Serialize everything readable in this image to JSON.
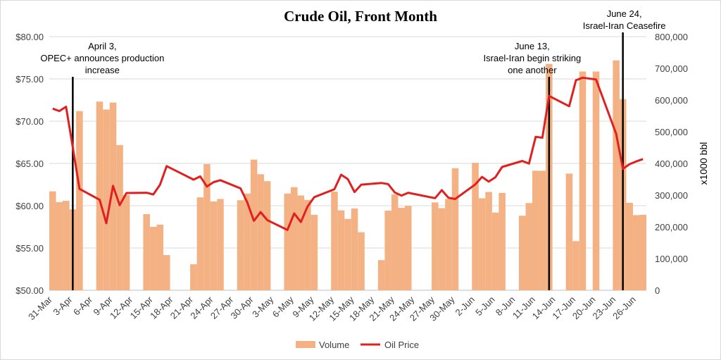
{
  "chart_data": {
    "type": "bar+line",
    "title": "Crude Oil, Front Month",
    "xlabel": "",
    "ylabel_left": "",
    "ylabel_right": "x1000 bbl",
    "ylim_left": [
      50,
      80
    ],
    "ylim_right": [
      0,
      800000
    ],
    "x_tick_labels": [
      "31-Mar",
      "3-Apr",
      "6-Apr",
      "9-Apr",
      "12-Apr",
      "15-Apr",
      "18-Apr",
      "21-Apr",
      "24-Apr",
      "27-Apr",
      "30-Apr",
      "3-May",
      "6-May",
      "9-May",
      "12-May",
      "15-May",
      "18-May",
      "21-May",
      "24-May",
      "27-May",
      "30-May",
      "2-Jun",
      "5-Jun",
      "8-Jun",
      "11-Jun",
      "14-Jun",
      "17-Jun",
      "20-Jun",
      "23-Jun",
      "26-Jun"
    ],
    "left_tick_labels": [
      "$50.00",
      "$55.00",
      "$60.00",
      "$65.00",
      "$70.00",
      "$75.00",
      "$80.00"
    ],
    "right_tick_labels": [
      "0",
      "100,000",
      "200,000",
      "300,000",
      "400,000",
      "500,000",
      "600,000",
      "700,000",
      "800,000"
    ],
    "series": [
      {
        "name": "Volume",
        "kind": "bar",
        "axis": "right",
        "color": "#f4b183",
        "x": [
          "31-Mar",
          "1-Apr",
          "2-Apr",
          "3-Apr",
          "4-Apr",
          "7-Apr",
          "8-Apr",
          "9-Apr",
          "10-Apr",
          "11-Apr",
          "14-Apr",
          "15-Apr",
          "16-Apr",
          "17-Apr",
          "21-Apr",
          "22-Apr",
          "23-Apr",
          "24-Apr",
          "25-Apr",
          "28-Apr",
          "29-Apr",
          "30-Apr",
          "1-May",
          "2-May",
          "5-May",
          "6-May",
          "7-May",
          "8-May",
          "9-May",
          "12-May",
          "13-May",
          "14-May",
          "15-May",
          "16-May",
          "19-May",
          "20-May",
          "21-May",
          "22-May",
          "23-May",
          "27-May",
          "28-May",
          "29-May",
          "30-May",
          "2-Jun",
          "3-Jun",
          "4-Jun",
          "5-Jun",
          "6-Jun",
          "9-Jun",
          "10-Jun",
          "11-Jun",
          "12-Jun",
          "13-Jun",
          "16-Jun",
          "17-Jun",
          "18-Jun",
          "20-Jun",
          "23-Jun",
          "24-Jun",
          "25-Jun",
          "26-Jun",
          "27-Jun"
        ],
        "values": [
          312000,
          278000,
          282000,
          255000,
          565000,
          595000,
          570000,
          592000,
          458000,
          300000,
          240000,
          200000,
          207000,
          111000,
          82000,
          293000,
          398000,
          280000,
          288000,
          284000,
          305000,
          412000,
          366000,
          344000,
          305000,
          325000,
          299000,
          285000,
          238000,
          311000,
          252000,
          225000,
          258000,
          183000,
          95000,
          251000,
          302000,
          260000,
          266000,
          277000,
          259000,
          288000,
          385000,
          402000,
          290000,
          310000,
          245000,
          307000,
          235000,
          275000,
          377000,
          377000,
          714000,
          368000,
          155000,
          690000,
          690000,
          725000,
          603000,
          276000,
          237000,
          238000
        ]
      },
      {
        "name": "Oil Price",
        "kind": "line",
        "axis": "left",
        "color": "#e02020",
        "x": [
          "31-Mar",
          "1-Apr",
          "2-Apr",
          "3-Apr",
          "4-Apr",
          "7-Apr",
          "8-Apr",
          "9-Apr",
          "10-Apr",
          "11-Apr",
          "14-Apr",
          "15-Apr",
          "16-Apr",
          "17-Apr",
          "21-Apr",
          "22-Apr",
          "23-Apr",
          "24-Apr",
          "25-Apr",
          "28-Apr",
          "29-Apr",
          "30-Apr",
          "1-May",
          "2-May",
          "5-May",
          "6-May",
          "7-May",
          "8-May",
          "9-May",
          "12-May",
          "13-May",
          "14-May",
          "15-May",
          "16-May",
          "19-May",
          "20-May",
          "21-May",
          "22-May",
          "23-May",
          "27-May",
          "28-May",
          "29-May",
          "30-May",
          "2-Jun",
          "3-Jun",
          "4-Jun",
          "5-Jun",
          "6-Jun",
          "9-Jun",
          "10-Jun",
          "11-Jun",
          "12-Jun",
          "13-Jun",
          "16-Jun",
          "17-Jun",
          "18-Jun",
          "20-Jun",
          "23-Jun",
          "24-Jun",
          "25-Jun",
          "26-Jun",
          "27-Jun"
        ],
        "values": [
          71.48,
          71.2,
          71.71,
          66.95,
          61.99,
          60.7,
          57.93,
          62.35,
          60.07,
          61.5,
          61.53,
          61.33,
          62.47,
          64.68,
          63.08,
          63.47,
          62.27,
          62.79,
          63.02,
          62.05,
          60.42,
          58.21,
          59.24,
          58.29,
          57.13,
          59.09,
          58.07,
          59.91,
          61.02,
          61.95,
          63.67,
          63.15,
          61.62,
          62.49,
          62.69,
          62.56,
          61.57,
          61.2,
          61.53,
          60.89,
          61.84,
          60.94,
          60.79,
          62.52,
          63.41,
          62.85,
          63.37,
          64.58,
          65.29,
          64.98,
          68.15,
          68.04,
          72.98,
          71.77,
          74.84,
          75.14,
          74.93,
          68.51,
          64.37,
          64.92,
          65.24,
          65.52
        ]
      }
    ],
    "annotations": [
      {
        "at": "3-Apr",
        "lines": [
          "April 3,",
          "OPEC+ announces production",
          "increase"
        ]
      },
      {
        "at": "13-Jun",
        "lines": [
          "June 13,",
          "Israel-Iran begin striking",
          "one another"
        ]
      },
      {
        "at": "24-Jun",
        "lines": [
          "June 24,",
          "Israel-Iran Ceasefire"
        ]
      }
    ],
    "legend": {
      "position": "bottom",
      "entries": [
        "Volume",
        "Oil Price"
      ]
    },
    "grid": {
      "horizontal": true,
      "vertical": false
    }
  }
}
